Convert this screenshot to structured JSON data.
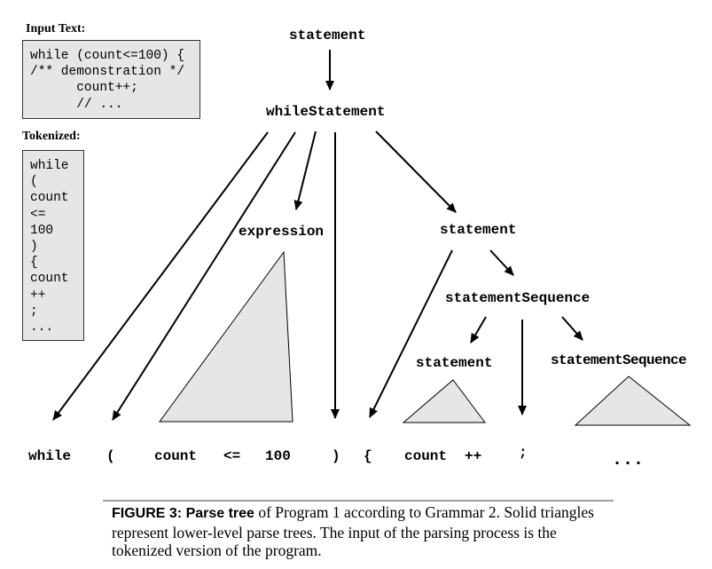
{
  "input_panel": {
    "label": "Input Text:",
    "lines": [
      "while (count<=100) {",
      "/** demonstration */",
      "      count++;",
      "      // ..."
    ]
  },
  "tokenized_panel": {
    "label": "Tokenized:",
    "tokens": [
      "while",
      "(",
      "count",
      "<=",
      "100",
      ")",
      "{",
      "count",
      "++",
      ";",
      "..."
    ]
  },
  "tree": {
    "root": "statement",
    "while_statement": "whileStatement",
    "expression": "expression",
    "statement_right": "statement",
    "statement_sequence": "statementSequence",
    "statement_inner": "statement",
    "statement_sequence_inner": "statementSequence"
  },
  "leaves": {
    "while": "while",
    "open_paren": "(",
    "count1": "count",
    "le": "<=",
    "n100": "100",
    "close_paren": ")",
    "open_brace": "{",
    "count2": "count",
    "plusplus": "++",
    "semicolon": ";",
    "ellipsis": "..."
  },
  "caption": {
    "heading": "FIGURE 3: Parse tree",
    "text": " of Program 1 according to Grammar 2.  Solid triangles represent lower-level parse trees. The input of the parsing process is the tokenized version of the program."
  },
  "colors": {
    "triangle_fill": "#e6e6e6",
    "box_fill": "#e6e6e6",
    "line": "#000000"
  }
}
